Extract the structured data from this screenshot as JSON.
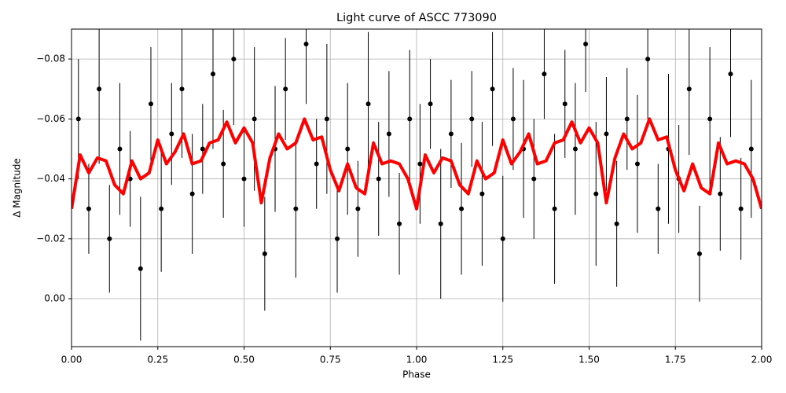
{
  "chart_data": {
    "type": "scatter",
    "title": "Light curve of ASCC 773090",
    "x_label": "Phase",
    "y_label": "Δ Magnitude",
    "xlim": [
      0,
      2
    ],
    "ylim": [
      0.016,
      -0.09
    ],
    "xticks": [
      {
        "value": 0,
        "label": "0.00"
      },
      {
        "value": 0.25,
        "label": "0.25"
      },
      {
        "value": 0.5,
        "label": "0.50"
      },
      {
        "value": 0.75,
        "label": "0.75"
      },
      {
        "value": 1,
        "label": "1.00"
      },
      {
        "value": 1.25,
        "label": "1.25"
      },
      {
        "value": 1.5,
        "label": "1.50"
      },
      {
        "value": 1.75,
        "label": "1.75"
      },
      {
        "value": 2,
        "label": "2.00"
      }
    ],
    "yticks": [
      {
        "value": 0,
        "label": "0.00"
      },
      {
        "value": -0.02,
        "label": "−0.02"
      },
      {
        "value": -0.04,
        "label": "−0.04"
      },
      {
        "value": -0.06,
        "label": "−0.06"
      },
      {
        "value": -0.08,
        "label": "−0.08"
      }
    ],
    "grid": true,
    "series": [
      {
        "type": "errorbar",
        "color": "#000000",
        "x": [
          0.02,
          0.05,
          0.08,
          0.11,
          0.14,
          0.17,
          0.2,
          0.23,
          0.26,
          0.29,
          0.32,
          0.35,
          0.38,
          0.41,
          0.44,
          0.47,
          0.5,
          0.53,
          0.56,
          0.59,
          0.62,
          0.65,
          0.68,
          0.71,
          0.74,
          0.77,
          0.8,
          0.83,
          0.86,
          0.89,
          0.92,
          0.95,
          0.98,
          1.01,
          1.04,
          1.07,
          1.1,
          1.13,
          1.16,
          1.19,
          1.22,
          1.25,
          1.28,
          1.31,
          1.34,
          1.37,
          1.4,
          1.43,
          1.46,
          1.49,
          1.52,
          1.55,
          1.58,
          1.61,
          1.64,
          1.67,
          1.7,
          1.73,
          1.76,
          1.79,
          1.82,
          1.85,
          1.88,
          1.91,
          1.94,
          1.97
        ],
        "values": [
          -0.06,
          -0.03,
          -0.07,
          -0.02,
          -0.05,
          -0.04,
          -0.01,
          -0.065,
          -0.03,
          -0.055,
          -0.07,
          -0.035,
          -0.05,
          -0.075,
          -0.045,
          -0.08,
          -0.04,
          -0.06,
          -0.015,
          -0.05,
          -0.07,
          -0.03,
          -0.085,
          -0.045,
          -0.06,
          -0.02,
          -0.05,
          -0.03,
          -0.065,
          -0.04,
          -0.055,
          -0.025,
          -0.06,
          -0.045,
          -0.065,
          -0.025,
          -0.055,
          -0.03,
          -0.06,
          -0.035,
          -0.07,
          -0.02,
          -0.06,
          -0.05,
          -0.04,
          -0.075,
          -0.03,
          -0.065,
          -0.05,
          -0.085,
          -0.035,
          -0.055,
          -0.025,
          -0.06,
          -0.045,
          -0.08,
          -0.03,
          -0.05,
          -0.04,
          -0.07,
          -0.015,
          -0.06,
          -0.035,
          -0.075,
          -0.03,
          -0.05
        ],
        "errors": [
          0.02,
          0.015,
          0.025,
          0.018,
          0.022,
          0.016,
          0.024,
          0.019,
          0.021,
          0.017,
          0.023,
          0.02,
          0.015,
          0.025,
          0.018,
          0.022,
          0.016,
          0.024,
          0.019,
          0.021,
          0.017,
          0.023,
          0.02,
          0.015,
          0.025,
          0.018,
          0.022,
          0.016,
          0.024,
          0.019,
          0.021,
          0.017,
          0.023,
          0.02,
          0.015,
          0.025,
          0.018,
          0.022,
          0.016,
          0.024,
          0.019,
          0.021,
          0.017,
          0.023,
          0.02,
          0.015,
          0.025,
          0.018,
          0.022,
          0.016,
          0.024,
          0.019,
          0.021,
          0.017,
          0.023,
          0.02,
          0.015,
          0.025,
          0.018,
          0.022,
          0.016,
          0.024,
          0.019,
          0.021,
          0.017,
          0.023
        ]
      },
      {
        "type": "line",
        "color": "#ff0000",
        "x": [
          0,
          0.025,
          0.05,
          0.075,
          0.1,
          0.125,
          0.15,
          0.175,
          0.2,
          0.225,
          0.25,
          0.275,
          0.3,
          0.325,
          0.35,
          0.375,
          0.4,
          0.425,
          0.45,
          0.475,
          0.5,
          0.525,
          0.55,
          0.575,
          0.6,
          0.625,
          0.65,
          0.675,
          0.7,
          0.725,
          0.75,
          0.775,
          0.8,
          0.825,
          0.85,
          0.875,
          0.9,
          0.925,
          0.95,
          0.975,
          1,
          1.025,
          1.05,
          1.075,
          1.1,
          1.125,
          1.15,
          1.175,
          1.2,
          1.225,
          1.25,
          1.275,
          1.3,
          1.325,
          1.35,
          1.375,
          1.4,
          1.425,
          1.45,
          1.475,
          1.5,
          1.525,
          1.55,
          1.575,
          1.6,
          1.625,
          1.65,
          1.675,
          1.7,
          1.725,
          1.75,
          1.775,
          1.8,
          1.825,
          1.85,
          1.875,
          1.9,
          1.925,
          1.95,
          1.975,
          2
        ],
        "values": [
          -0.03,
          -0.048,
          -0.042,
          -0.047,
          -0.046,
          -0.038,
          -0.035,
          -0.046,
          -0.04,
          -0.042,
          -0.053,
          -0.045,
          -0.049,
          -0.055,
          -0.045,
          -0.046,
          -0.052,
          -0.053,
          -0.059,
          -0.052,
          -0.057,
          -0.052,
          -0.032,
          -0.047,
          -0.055,
          -0.05,
          -0.052,
          -0.06,
          -0.053,
          -0.054,
          -0.043,
          -0.036,
          -0.045,
          -0.037,
          -0.035,
          -0.052,
          -0.045,
          -0.046,
          -0.045,
          -0.04,
          -0.03,
          -0.048,
          -0.042,
          -0.047,
          -0.046,
          -0.038,
          -0.035,
          -0.046,
          -0.04,
          -0.042,
          -0.053,
          -0.045,
          -0.049,
          -0.055,
          -0.045,
          -0.046,
          -0.052,
          -0.053,
          -0.059,
          -0.052,
          -0.057,
          -0.052,
          -0.032,
          -0.047,
          -0.055,
          -0.05,
          -0.052,
          -0.06,
          -0.053,
          -0.054,
          -0.043,
          -0.036,
          -0.045,
          -0.037,
          -0.035,
          -0.052,
          -0.045,
          -0.046,
          -0.045,
          -0.04,
          -0.03
        ]
      }
    ]
  }
}
